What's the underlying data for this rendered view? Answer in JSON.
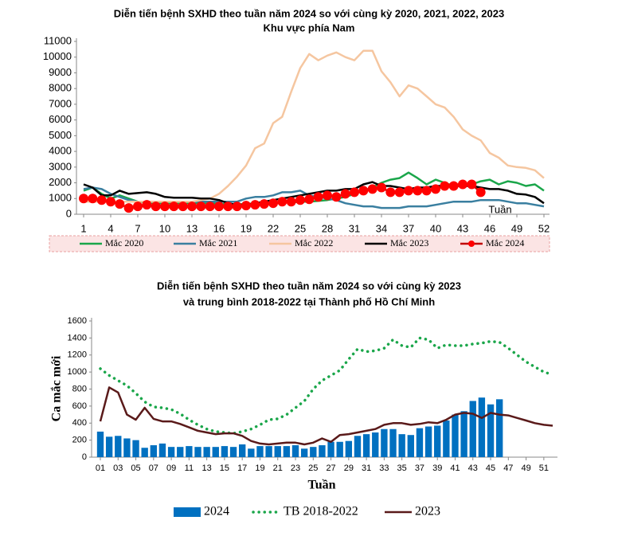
{
  "chart_data": [
    {
      "type": "line",
      "title": "Diễn tiến bệnh SXHD theo tuần năm 2024 so với cùng kỳ 2020, 2021, 2022, 2023",
      "subtitle": "Khu vực phía Nam",
      "x_label": "Tuần",
      "x": [
        1,
        2,
        3,
        4,
        5,
        6,
        7,
        8,
        9,
        10,
        11,
        12,
        13,
        14,
        15,
        16,
        17,
        18,
        19,
        20,
        21,
        22,
        23,
        24,
        25,
        26,
        27,
        28,
        29,
        30,
        31,
        32,
        33,
        34,
        35,
        36,
        37,
        38,
        39,
        40,
        41,
        42,
        43,
        44,
        45,
        46,
        47,
        48,
        49,
        50,
        51,
        52
      ],
      "xlim": [
        1,
        52
      ],
      "xticks": [
        1,
        4,
        7,
        10,
        13,
        16,
        19,
        22,
        25,
        28,
        31,
        34,
        37,
        40,
        43,
        46,
        49,
        52
      ],
      "ylim": [
        0,
        11000
      ],
      "yticks": [
        0,
        1000,
        2000,
        3000,
        4000,
        5000,
        6000,
        7000,
        8000,
        9000,
        10000,
        11000
      ],
      "legend": "bottom",
      "series": [
        {
          "name": "Mắc 2020",
          "color": "#1aa64a",
          "values": [
            1500,
            1700,
            1300,
            1000,
            1200,
            1000,
            800,
            750,
            700,
            700,
            700,
            700,
            700,
            700,
            700,
            650,
            650,
            650,
            650,
            700,
            700,
            700,
            750,
            750,
            800,
            800,
            850,
            900,
            1000,
            1100,
            1300,
            1500,
            1700,
            2000,
            2200,
            2300,
            2650,
            2300,
            1900,
            2200,
            2000,
            1800,
            2000,
            1900,
            2100,
            2200,
            1900,
            2100,
            2000,
            1800,
            1900,
            1500
          ]
        },
        {
          "name": "Mắc 2021",
          "color": "#3a7fa0",
          "values": [
            1600,
            1700,
            1600,
            1300,
            1100,
            900,
            800,
            800,
            800,
            800,
            800,
            800,
            800,
            800,
            800,
            800,
            800,
            800,
            1000,
            1100,
            1100,
            1200,
            1400,
            1400,
            1500,
            1200,
            1100,
            1000,
            900,
            700,
            600,
            500,
            500,
            400,
            400,
            400,
            500,
            500,
            500,
            600,
            700,
            800,
            800,
            800,
            900,
            900,
            900,
            800,
            700,
            700,
            600,
            500
          ]
        },
        {
          "name": "Mắc 2022",
          "color": "#f5c6a0",
          "values": [
            800,
            800,
            800,
            800,
            800,
            800,
            800,
            800,
            800,
            800,
            800,
            800,
            800,
            900,
            1000,
            1300,
            1800,
            2400,
            3100,
            4200,
            4500,
            5800,
            6200,
            7800,
            9300,
            10200,
            9800,
            10100,
            10300,
            10000,
            9800,
            10400,
            10400,
            9100,
            8400,
            7500,
            8200,
            8000,
            7500,
            7000,
            6800,
            6200,
            5400,
            5000,
            4700,
            3900,
            3600,
            3100,
            3000,
            2950,
            2800,
            2300
          ]
        },
        {
          "name": "Mắc 2023",
          "color": "#000000",
          "values": [
            1900,
            1700,
            1200,
            1200,
            1500,
            1300,
            1350,
            1400,
            1300,
            1100,
            1050,
            1050,
            1050,
            1000,
            1000,
            900,
            700,
            600,
            600,
            700,
            800,
            900,
            1000,
            1100,
            1200,
            1300,
            1400,
            1500,
            1500,
            1600,
            1600,
            1900,
            2050,
            1800,
            1800,
            1700,
            1600,
            1700,
            1700,
            1800,
            1800,
            1800,
            1800,
            1800,
            1700,
            1600,
            1600,
            1500,
            1300,
            1250,
            1100,
            700
          ]
        },
        {
          "name": "Mắc 2024",
          "color": "#ff0000",
          "markers": true,
          "values": [
            1000,
            1000,
            900,
            800,
            650,
            400,
            500,
            600,
            500,
            500,
            500,
            500,
            500,
            500,
            500,
            500,
            500,
            500,
            550,
            600,
            650,
            700,
            800,
            800,
            900,
            950,
            1100,
            1200,
            1100,
            1300,
            1400,
            1500,
            1600,
            1700,
            1400,
            1400,
            1500,
            1500,
            1500,
            1600,
            1800,
            1800,
            1900,
            1900,
            1400,
            null,
            null,
            null,
            null,
            null,
            null,
            null
          ]
        }
      ]
    },
    {
      "type": "bar",
      "title": "Diễn tiến bệnh SXHD theo tuần năm 2024 so với cùng kỳ 2023",
      "subtitle": "và trung bình 2018-2022 tại Thành phố Hồ Chí Minh",
      "x_label": "Tuần",
      "y_label": "Ca mắc mới",
      "x": [
        1,
        2,
        3,
        4,
        5,
        6,
        7,
        8,
        9,
        10,
        11,
        12,
        13,
        14,
        15,
        16,
        17,
        18,
        19,
        20,
        21,
        22,
        23,
        24,
        25,
        26,
        27,
        28,
        29,
        30,
        31,
        32,
        33,
        34,
        35,
        36,
        37,
        38,
        39,
        40,
        41,
        42,
        43,
        44,
        45,
        46,
        47,
        48,
        49,
        50,
        51,
        52
      ],
      "xlim": [
        1,
        52
      ],
      "xticks": [
        {
          "value": 1,
          "label": "01"
        },
        {
          "value": 3,
          "label": "03"
        },
        {
          "value": 5,
          "label": "05"
        },
        {
          "value": 7,
          "label": "07"
        },
        {
          "value": 9,
          "label": "09"
        },
        11,
        13,
        15,
        17,
        19,
        21,
        23,
        25,
        27,
        29,
        31,
        33,
        35,
        37,
        39,
        41,
        43,
        45,
        47,
        49,
        51
      ],
      "ylim": [
        0,
        1600
      ],
      "yticks": [
        0,
        200,
        400,
        600,
        800,
        1000,
        1200,
        1400,
        1600
      ],
      "legend": "bottom",
      "series": [
        {
          "name": "2024",
          "type": "bar",
          "color": "#0070c0",
          "values": [
            300,
            240,
            250,
            220,
            200,
            110,
            140,
            160,
            120,
            120,
            130,
            120,
            120,
            120,
            130,
            120,
            150,
            100,
            130,
            130,
            130,
            130,
            140,
            100,
            120,
            140,
            180,
            180,
            190,
            250,
            270,
            290,
            330,
            330,
            270,
            260,
            340,
            360,
            370,
            430,
            500,
            540,
            660,
            700,
            620,
            680,
            null,
            null,
            null,
            null,
            null,
            null
          ]
        },
        {
          "name": "TB 2018-2022",
          "type": "line",
          "style": "dotted",
          "color": "#1aa64a",
          "values": [
            1040,
            960,
            900,
            840,
            750,
            650,
            590,
            580,
            560,
            510,
            440,
            380,
            330,
            300,
            290,
            280,
            300,
            330,
            380,
            440,
            450,
            500,
            580,
            660,
            800,
            900,
            960,
            1020,
            1150,
            1270,
            1240,
            1250,
            1280,
            1380,
            1310,
            1290,
            1400,
            1380,
            1280,
            1320,
            1310,
            1310,
            1330,
            1340,
            1360,
            1350,
            1280,
            1200,
            1120,
            1060,
            1000,
            970
          ]
        },
        {
          "name": "2023",
          "type": "line",
          "color": "#5a1a1a",
          "values": [
            420,
            820,
            760,
            500,
            440,
            580,
            450,
            420,
            420,
            390,
            350,
            310,
            290,
            270,
            280,
            280,
            250,
            190,
            160,
            150,
            160,
            170,
            170,
            150,
            170,
            220,
            180,
            260,
            270,
            290,
            310,
            330,
            380,
            400,
            400,
            380,
            390,
            410,
            400,
            440,
            500,
            520,
            510,
            460,
            520,
            500,
            490,
            460,
            430,
            400,
            380,
            370
          ]
        }
      ]
    }
  ]
}
